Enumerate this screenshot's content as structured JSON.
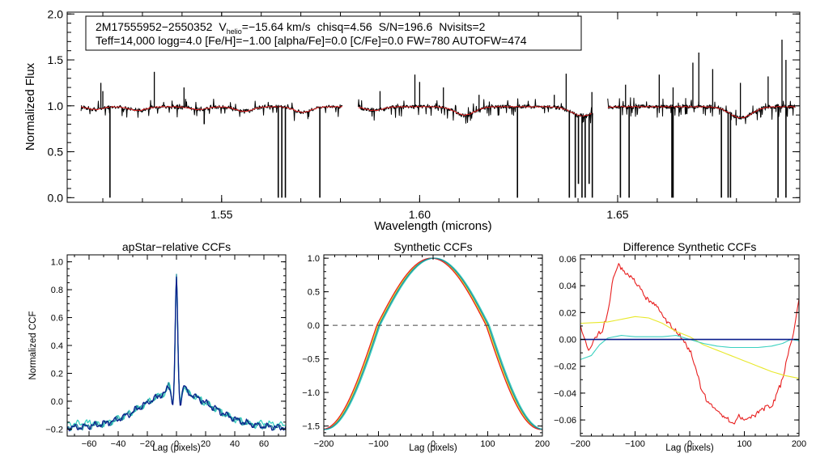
{
  "chart_data": [
    {
      "type": "line",
      "name": "spectrum",
      "xlabel": "Wavelength (microns)",
      "ylabel": "Normalized Flux",
      "xlim": [
        1.511,
        1.696
      ],
      "ylim": [
        -0.05,
        2.02
      ],
      "xticks": [
        1.55,
        1.6,
        1.65
      ],
      "xtick_labels": [
        "1.55",
        "1.60",
        "1.65"
      ],
      "yticks": [
        0.0,
        0.5,
        1.0,
        1.5,
        2.0
      ],
      "ytick_labels": [
        "0.0",
        "0.5",
        "1.0",
        "1.5",
        "2.0"
      ],
      "info_line1": {
        "object": "2M17555952−2550352",
        "vhelio_label": "V",
        "vhelio_sub": "helio",
        "vhelio_value": "=−15.64 km/s",
        "chisq": "chisq=4.56",
        "snr": "S/N=196.6",
        "nvisits": "Nvisits=2"
      },
      "info_line2": "Teff=14,000 logg=4.0 [Fe/H]=−1.00 [alpha/Fe]=0.0 [C/Fe]=0.0 FW=780 AUTOFW=474",
      "chips": [
        [
          1.5145,
          1.5805
        ],
        [
          1.5845,
          1.6437
        ],
        [
          1.6475,
          1.6948
        ]
      ],
      "continuum": 0.99,
      "broad_lines": [
        {
          "center": 1.5181,
          "depth": 0.03,
          "width": 0.0025
        },
        {
          "center": 1.5288,
          "depth": 0.04,
          "width": 0.003
        },
        {
          "center": 1.5442,
          "depth": 0.03,
          "width": 0.003
        },
        {
          "center": 1.5557,
          "depth": 0.05,
          "width": 0.003
        },
        {
          "center": 1.5705,
          "depth": 0.06,
          "width": 0.003
        },
        {
          "center": 1.5885,
          "depth": 0.04,
          "width": 0.003
        },
        {
          "center": 1.6114,
          "depth": 0.09,
          "width": 0.0035
        },
        {
          "center": 1.6412,
          "depth": 0.1,
          "width": 0.004
        },
        {
          "center": 1.6811,
          "depth": 0.12,
          "width": 0.004
        }
      ],
      "spikes": [
        {
          "x": 1.5195,
          "y": 1.25
        },
        {
          "x": 1.52,
          "y": 1.16
        },
        {
          "x": 1.533,
          "y": 1.37
        },
        {
          "x": 1.5405,
          "y": 1.2
        },
        {
          "x": 1.59,
          "y": 1.16
        },
        {
          "x": 1.5988,
          "y": 1.34
        },
        {
          "x": 1.6,
          "y": 1.26
        },
        {
          "x": 1.606,
          "y": 1.2
        },
        {
          "x": 1.615,
          "y": 1.12
        },
        {
          "x": 1.634,
          "y": 1.12
        },
        {
          "x": 1.637,
          "y": 1.35
        },
        {
          "x": 1.6435,
          "y": 1.15
        },
        {
          "x": 1.652,
          "y": 1.23
        },
        {
          "x": 1.6605,
          "y": 1.34
        },
        {
          "x": 1.664,
          "y": 1.2
        },
        {
          "x": 1.669,
          "y": 1.47
        },
        {
          "x": 1.6705,
          "y": 1.58
        },
        {
          "x": 1.674,
          "y": 1.4
        },
        {
          "x": 1.681,
          "y": 1.25
        },
        {
          "x": 1.688,
          "y": 1.32
        },
        {
          "x": 1.6915,
          "y": 1.72
        },
        {
          "x": 1.6925,
          "y": 1.5
        }
      ],
      "dips": [
        {
          "x": 1.5218,
          "y": 0.0
        },
        {
          "x": 1.5456,
          "y": 0.8
        },
        {
          "x": 1.5643,
          "y": 0.0
        },
        {
          "x": 1.5652,
          "y": 0.0
        },
        {
          "x": 1.5661,
          "y": 0.0
        },
        {
          "x": 1.5748,
          "y": 0.0
        },
        {
          "x": 1.6247,
          "y": 0.0
        },
        {
          "x": 1.6378,
          "y": 0.0
        },
        {
          "x": 1.6393,
          "y": 0.0
        },
        {
          "x": 1.6401,
          "y": 0.15
        },
        {
          "x": 1.641,
          "y": 0.0
        },
        {
          "x": 1.6418,
          "y": 0.0
        },
        {
          "x": 1.6428,
          "y": 0.15
        },
        {
          "x": 1.6436,
          "y": 0.0
        },
        {
          "x": 1.6507,
          "y": 0.0
        },
        {
          "x": 1.6529,
          "y": 0.0
        },
        {
          "x": 1.6637,
          "y": 0.0
        },
        {
          "x": 1.664,
          "y": 0.0
        },
        {
          "x": 1.6762,
          "y": 0.0
        },
        {
          "x": 1.6779,
          "y": 0.0
        },
        {
          "x": 1.6785,
          "y": 0.0
        },
        {
          "x": 1.6905,
          "y": 0.0
        },
        {
          "x": 1.6925,
          "y": 0.0
        }
      ],
      "series": [
        {
          "name": "observed",
          "color": "#000000"
        },
        {
          "name": "model",
          "color": "#e81f1f"
        }
      ]
    },
    {
      "type": "line",
      "name": "apstar-ccf",
      "title": "apStar−relative CCFs",
      "xlabel": "Lag (pixels)",
      "ylabel": "Normalized CCF",
      "xlim": [
        -75,
        75
      ],
      "ylim": [
        -0.25,
        1.05
      ],
      "xticks": [
        -60,
        -40,
        -20,
        0,
        20,
        40,
        60
      ],
      "xtick_labels": [
        "−60",
        "−40",
        "−20",
        "0",
        "20",
        "40",
        "60"
      ],
      "yticks": [
        -0.2,
        0.0,
        0.2,
        0.4,
        0.6,
        0.8,
        1.0
      ],
      "ytick_labels": [
        "−0.2",
        "0.0",
        "0.2",
        "0.4",
        "0.6",
        "0.8",
        "1.0"
      ],
      "series": [
        {
          "name": "ccf-a",
          "color": "#3bd1c0"
        },
        {
          "name": "ccf-b",
          "color": "#1f8a9a"
        },
        {
          "name": "ccf-c",
          "color": "#0a1f8c"
        }
      ]
    },
    {
      "type": "line",
      "name": "synthetic-ccf",
      "title": "Synthetic CCFs",
      "xlabel": "Lag (pixels)",
      "xlim": [
        -200,
        200
      ],
      "ylim": [
        -1.65,
        1.05
      ],
      "xticks": [
        -200,
        -100,
        0,
        100,
        200
      ],
      "xtick_labels": [
        "−200",
        "−100",
        "0",
        "100",
        "200"
      ],
      "yticks": [
        -1.5,
        -1.0,
        -0.5,
        0.0,
        0.5,
        1.0
      ],
      "ytick_labels": [
        "−1.5",
        "−1.0",
        "−0.5",
        "0.0",
        "0.5",
        "1.0"
      ],
      "zero_line": 0.0,
      "peak": 1.0,
      "zero_crossing": 100,
      "edge_value": -1.55,
      "series": [
        {
          "name": "synth-1",
          "color": "#3bd1c0",
          "shift": 3
        },
        {
          "name": "synth-2",
          "color": "#e8e82a",
          "shift": -1
        },
        {
          "name": "synth-3",
          "color": "#e81f1f",
          "shift": -3
        },
        {
          "name": "synth-4",
          "color": "#1f8a9a",
          "shift": 1
        }
      ]
    },
    {
      "type": "line",
      "name": "difference-ccf",
      "title": "Difference Synthetic CCFs",
      "xlabel": "Lag (pixels)",
      "xlim": [
        -200,
        200
      ],
      "ylim": [
        -0.072,
        0.063
      ],
      "xticks": [
        -200,
        -100,
        0,
        100,
        200
      ],
      "xtick_labels": [
        "−200",
        "−100",
        "0",
        "100",
        "200"
      ],
      "yticks": [
        -0.06,
        -0.04,
        -0.02,
        0.0,
        0.02,
        0.04,
        0.06
      ],
      "ytick_labels": [
        "−0.06",
        "−0.04",
        "−0.02",
        "0.00",
        "0.02",
        "0.04",
        "0.06"
      ],
      "series": [
        {
          "name": "diff-red",
          "color": "#e81f1f",
          "points": [
            [
              -200,
              0.01
            ],
            [
              -185,
              -0.008
            ],
            [
              -170,
              0.003
            ],
            [
              -160,
              0.006
            ],
            [
              -150,
              0.02
            ],
            [
              -140,
              0.045
            ],
            [
              -130,
              0.056
            ],
            [
              -120,
              0.05
            ],
            [
              -110,
              0.048
            ],
            [
              -100,
              0.043
            ],
            [
              -90,
              0.038
            ],
            [
              -80,
              0.03
            ],
            [
              -70,
              0.028
            ],
            [
              -60,
              0.024
            ],
            [
              -50,
              0.018
            ],
            [
              -40,
              0.012
            ],
            [
              -30,
              0.008
            ],
            [
              -20,
              0.003
            ],
            [
              -10,
              -0.002
            ],
            [
              0,
              -0.008
            ],
            [
              10,
              -0.02
            ],
            [
              20,
              -0.035
            ],
            [
              30,
              -0.045
            ],
            [
              40,
              -0.05
            ],
            [
              50,
              -0.052
            ],
            [
              60,
              -0.057
            ],
            [
              70,
              -0.06
            ],
            [
              80,
              -0.063
            ],
            [
              90,
              -0.057
            ],
            [
              100,
              -0.06
            ],
            [
              110,
              -0.058
            ],
            [
              120,
              -0.056
            ],
            [
              130,
              -0.053
            ],
            [
              140,
              -0.05
            ],
            [
              150,
              -0.05
            ],
            [
              160,
              -0.04
            ],
            [
              170,
              -0.03
            ],
            [
              180,
              -0.01
            ],
            [
              190,
              0.005
            ],
            [
              200,
              0.03
            ]
          ]
        },
        {
          "name": "diff-yellow",
          "color": "#e8e82a",
          "points": [
            [
              -200,
              0.012
            ],
            [
              -150,
              0.013
            ],
            [
              -100,
              0.017
            ],
            [
              -75,
              0.016
            ],
            [
              -50,
              0.012
            ],
            [
              -25,
              0.006
            ],
            [
              0,
              0.002
            ],
            [
              25,
              -0.004
            ],
            [
              50,
              -0.008
            ],
            [
              75,
              -0.012
            ],
            [
              100,
              -0.016
            ],
            [
              125,
              -0.02
            ],
            [
              150,
              -0.024
            ],
            [
              175,
              -0.027
            ],
            [
              200,
              -0.029
            ]
          ]
        },
        {
          "name": "diff-cyan",
          "color": "#3bd1c0",
          "points": [
            [
              -200,
              -0.015
            ],
            [
              -180,
              -0.012
            ],
            [
              -165,
              -0.004
            ],
            [
              -150,
              0.001
            ],
            [
              -125,
              0.003
            ],
            [
              -100,
              0.002
            ],
            [
              -75,
              0.002
            ],
            [
              -50,
              0.002
            ],
            [
              -25,
              0.003
            ],
            [
              0,
              0.0
            ],
            [
              25,
              -0.003
            ],
            [
              50,
              -0.005
            ],
            [
              75,
              -0.006
            ],
            [
              100,
              -0.006
            ],
            [
              125,
              -0.006
            ],
            [
              150,
              -0.005
            ],
            [
              170,
              -0.003
            ],
            [
              185,
              0.0
            ],
            [
              200,
              -0.001
            ]
          ]
        },
        {
          "name": "diff-navy",
          "color": "#0a1f8c",
          "points": [
            [
              -200,
              0.0
            ],
            [
              200,
              0.0
            ]
          ]
        }
      ]
    }
  ]
}
